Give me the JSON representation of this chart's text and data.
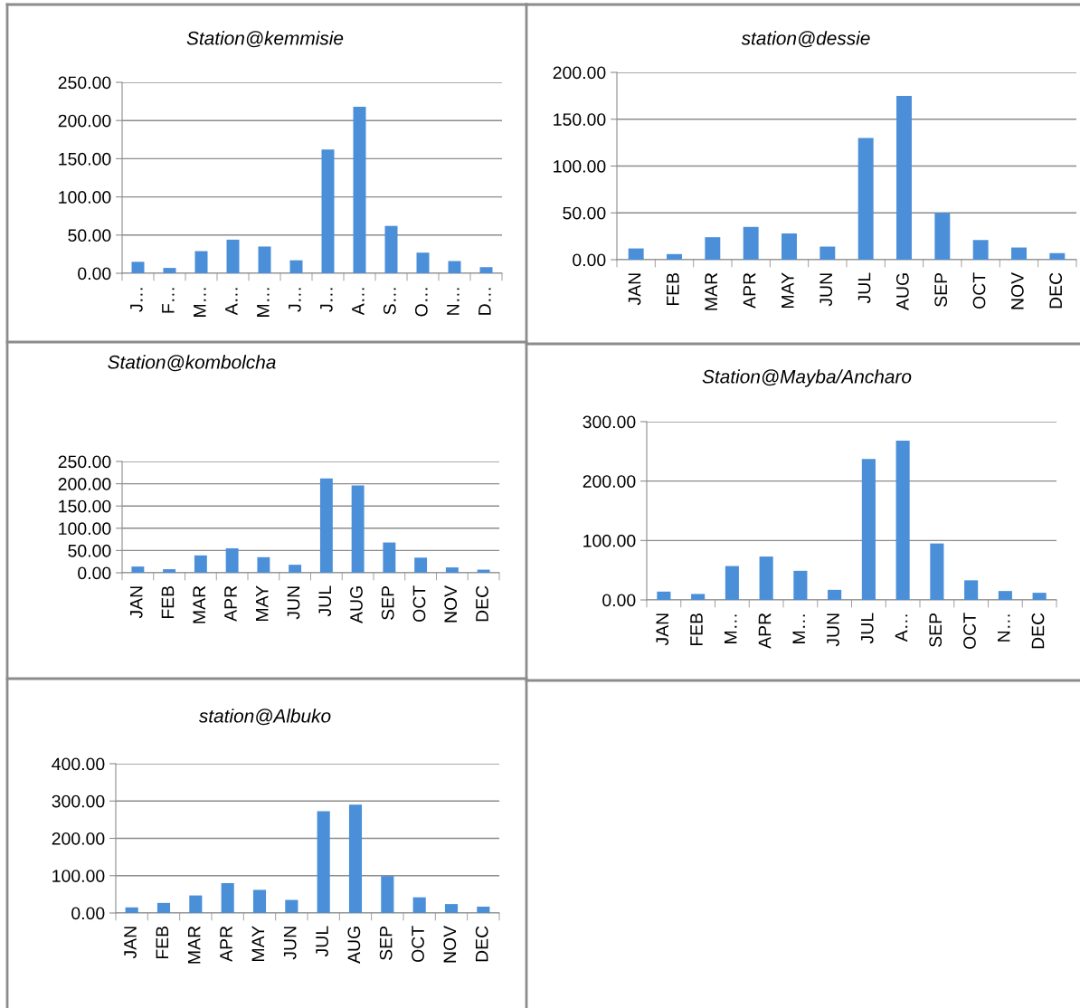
{
  "chart_data": [
    {
      "type": "bar",
      "title": "Station@kemmisie",
      "categories": [
        "J…",
        "F…",
        "M…",
        "A…",
        "M…",
        "J…",
        "J…",
        "A…",
        "S…",
        "O…",
        "N…",
        "D…"
      ],
      "values": [
        15,
        7,
        29,
        44,
        35,
        17,
        162,
        218,
        62,
        27,
        16,
        8
      ],
      "color": "#4a8fd8",
      "ylim": [
        0,
        250
      ],
      "yticks": [
        {
          "value": 0,
          "label": "0.00"
        },
        {
          "value": 50,
          "label": "50.00"
        },
        {
          "value": 100,
          "label": "100.00"
        },
        {
          "value": 150,
          "label": "150.00"
        },
        {
          "value": 200,
          "label": "200.00"
        },
        {
          "value": 250,
          "label": "250.00"
        }
      ],
      "grid": "y",
      "legend": false
    },
    {
      "type": "bar",
      "title": "station@dessie",
      "categories": [
        "JAN",
        "FEB",
        "MAR",
        "APR",
        "MAY",
        "JUN",
        "JUL",
        "AUG",
        "SEP",
        "OCT",
        "NOV",
        "DEC"
      ],
      "values": [
        12,
        6,
        24,
        35,
        28,
        14,
        130,
        175,
        50,
        21,
        13,
        7
      ],
      "color": "#4a8fd8",
      "ylim": [
        0,
        200
      ],
      "yticks": [
        {
          "value": 0,
          "label": "0.00"
        },
        {
          "value": 50,
          "label": "50.00"
        },
        {
          "value": 100,
          "label": "100.00"
        },
        {
          "value": 150,
          "label": "150.00"
        },
        {
          "value": 200,
          "label": "200.00"
        }
      ],
      "grid": "y",
      "legend": false
    },
    {
      "type": "bar",
      "title": "Station@kombolcha",
      "categories": [
        "JAN",
        "FEB",
        "MAR",
        "APR",
        "MAY",
        "JUN",
        "JUL",
        "AUG",
        "SEP",
        "OCT",
        "NOV",
        "DEC"
      ],
      "values": [
        14,
        8,
        39,
        55,
        35,
        18,
        212,
        196,
        68,
        34,
        12,
        7
      ],
      "color": "#4a8fd8",
      "ylim": [
        0,
        250
      ],
      "yticks": [
        {
          "value": 0,
          "label": "0.00"
        },
        {
          "value": 50,
          "label": "50.00"
        },
        {
          "value": 100,
          "label": "100.00"
        },
        {
          "value": 150,
          "label": "150.00"
        },
        {
          "value": 200,
          "label": "200.00"
        },
        {
          "value": 250,
          "label": "250.00"
        }
      ],
      "grid": "y",
      "legend": false
    },
    {
      "type": "bar",
      "title": "Station@Mayba/Ancharo",
      "categories": [
        "JAN",
        "FEB",
        "M…",
        "APR",
        "M…",
        "JUN",
        "JUL",
        "A…",
        "SEP",
        "OCT",
        "N…",
        "DEC"
      ],
      "values": [
        14,
        10,
        57,
        73,
        49,
        17,
        237,
        268,
        95,
        33,
        15,
        12
      ],
      "color": "#4a8fd8",
      "ylim": [
        0,
        300
      ],
      "yticks": [
        {
          "value": 0,
          "label": "0.00"
        },
        {
          "value": 100,
          "label": "100.00"
        },
        {
          "value": 200,
          "label": "200.00"
        },
        {
          "value": 300,
          "label": "300.00"
        }
      ],
      "grid": "y",
      "legend": false
    },
    {
      "type": "bar",
      "title": "station@Albuko",
      "categories": [
        "JAN",
        "FEB",
        "MAR",
        "APR",
        "MAY",
        "JUN",
        "JUL",
        "AUG",
        "SEP",
        "OCT",
        "NOV",
        "DEC"
      ],
      "values": [
        15,
        27,
        47,
        80,
        62,
        35,
        273,
        290,
        99,
        42,
        24,
        17
      ],
      "color": "#4a8fd8",
      "ylim": [
        0,
        400
      ],
      "yticks": [
        {
          "value": 0,
          "label": "0.00"
        },
        {
          "value": 100,
          "label": "100.00"
        },
        {
          "value": 200,
          "label": "200.00"
        },
        {
          "value": 300,
          "label": "300.00"
        },
        {
          "value": 400,
          "label": "400.00"
        }
      ],
      "grid": "y",
      "legend": false
    }
  ]
}
